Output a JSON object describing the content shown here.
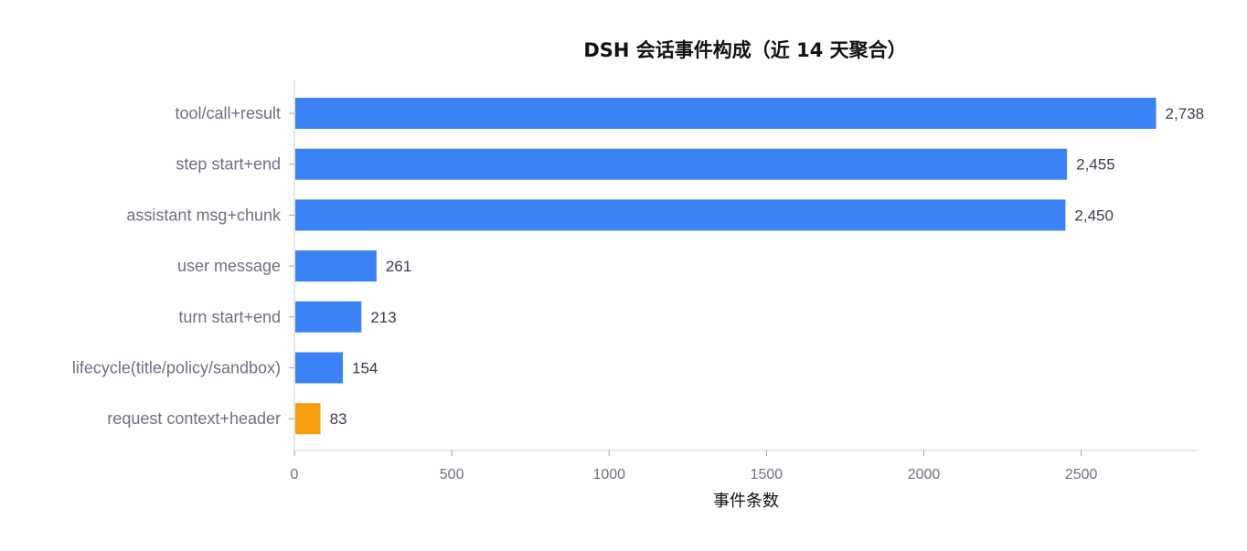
{
  "chart_data": {
    "type": "bar",
    "orientation": "horizontal",
    "title": "DSH 会话事件构成（近 14 天聚合）",
    "xlabel": "事件条数",
    "ylabel": "",
    "categories": [
      "tool/call+result",
      "step start+end",
      "assistant msg+chunk",
      "user message",
      "turn start+end",
      "lifecycle(title/policy/sandbox)",
      "request context+header"
    ],
    "values": [
      2738,
      2455,
      2450,
      261,
      213,
      154,
      83
    ],
    "value_labels": [
      "2,738",
      "2,455",
      "2,450",
      "261",
      "213",
      "154",
      "83"
    ],
    "colors": [
      "#3b82f6",
      "#3b82f6",
      "#3b82f6",
      "#3b82f6",
      "#3b82f6",
      "#3b82f6",
      "#f59e0b"
    ],
    "xticks": [
      0,
      500,
      1000,
      1500,
      2000,
      2500
    ],
    "xtick_labels": [
      "0",
      "500",
      "1000",
      "1500",
      "2000",
      "2500"
    ],
    "xlim": [
      0,
      2870
    ],
    "grid": false,
    "legend": "none"
  }
}
